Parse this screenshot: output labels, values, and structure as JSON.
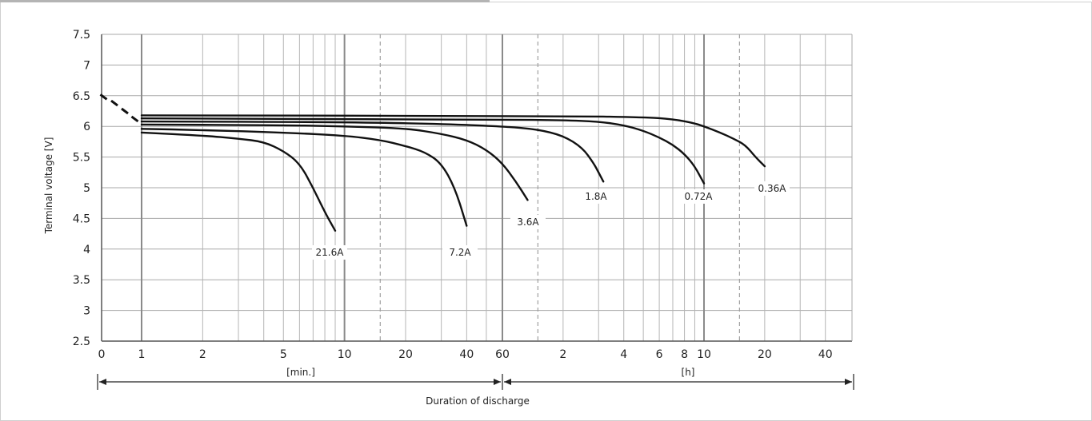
{
  "chart_data": {
    "type": "line",
    "ylabel": "Terminal voltage [V]",
    "xlabel": "Duration of discharge",
    "unit_labels": {
      "minutes": "[min.]",
      "hours": "[h]"
    },
    "ylim": [
      2.5,
      7.5
    ],
    "y_ticks": [
      "2.5",
      "3",
      "3.5",
      "4",
      "4.5",
      "5",
      "5.5",
      "6",
      "6.5",
      "7",
      "7.5"
    ],
    "x_tick_labels": [
      {
        "label": "0",
        "minutes": 0
      },
      {
        "label": "1",
        "minutes": 1
      },
      {
        "label": "2",
        "minutes": 2
      },
      {
        "label": "5",
        "minutes": 5
      },
      {
        "label": "10",
        "minutes": 10
      },
      {
        "label": "20",
        "minutes": 20
      },
      {
        "label": "40",
        "minutes": 40
      },
      {
        "label": "60",
        "minutes": 60
      },
      {
        "label": "2",
        "minutes": 120
      },
      {
        "label": "4",
        "minutes": 240
      },
      {
        "label": "6",
        "minutes": 360
      },
      {
        "label": "8",
        "minutes": 480
      },
      {
        "label": "10",
        "minutes": 600
      },
      {
        "label": "20",
        "minutes": 1200
      },
      {
        "label": "40",
        "minutes": 2400
      }
    ],
    "grid": true,
    "series": [
      {
        "name": "21.6A",
        "points": [
          [
            1,
            5.9
          ],
          [
            2,
            5.85
          ],
          [
            3,
            5.8
          ],
          [
            4,
            5.75
          ],
          [
            5,
            5.6
          ],
          [
            6,
            5.4
          ],
          [
            7,
            5.0
          ],
          [
            8,
            4.6
          ],
          [
            9,
            4.3
          ]
        ]
      },
      {
        "name": "7.2A",
        "points": [
          [
            1,
            5.96
          ],
          [
            2,
            5.94
          ],
          [
            5,
            5.9
          ],
          [
            10,
            5.85
          ],
          [
            15,
            5.78
          ],
          [
            20,
            5.68
          ],
          [
            25,
            5.58
          ],
          [
            30,
            5.4
          ],
          [
            35,
            5.0
          ],
          [
            40,
            4.38
          ]
        ]
      },
      {
        "name": "3.6A",
        "points": [
          [
            1,
            6.03
          ],
          [
            5,
            6.02
          ],
          [
            10,
            6.0
          ],
          [
            20,
            5.97
          ],
          [
            30,
            5.88
          ],
          [
            40,
            5.78
          ],
          [
            50,
            5.62
          ],
          [
            60,
            5.4
          ],
          [
            70,
            5.1
          ],
          [
            80,
            4.8
          ]
        ]
      },
      {
        "name": "1.8A",
        "points": [
          [
            1,
            6.08
          ],
          [
            10,
            6.07
          ],
          [
            30,
            6.04
          ],
          [
            60,
            6.0
          ],
          [
            90,
            5.95
          ],
          [
            120,
            5.85
          ],
          [
            150,
            5.65
          ],
          [
            170,
            5.4
          ],
          [
            180,
            5.25
          ],
          [
            190,
            5.1
          ]
        ]
      },
      {
        "name": "0.72A",
        "points": [
          [
            1,
            6.13
          ],
          [
            60,
            6.11
          ],
          [
            120,
            6.1
          ],
          [
            180,
            6.08
          ],
          [
            240,
            6.02
          ],
          [
            300,
            5.93
          ],
          [
            360,
            5.82
          ],
          [
            420,
            5.7
          ],
          [
            480,
            5.55
          ],
          [
            540,
            5.35
          ],
          [
            600,
            5.07
          ]
        ]
      },
      {
        "name": "0.36A",
        "points": [
          [
            1,
            6.18
          ],
          [
            120,
            6.17
          ],
          [
            300,
            6.15
          ],
          [
            420,
            6.12
          ],
          [
            540,
            6.05
          ],
          [
            600,
            6.0
          ],
          [
            720,
            5.9
          ],
          [
            840,
            5.8
          ],
          [
            960,
            5.7
          ],
          [
            1080,
            5.5
          ],
          [
            1200,
            5.35
          ]
        ]
      }
    ],
    "initial_markers": [
      [
        0.05,
        6.48
      ],
      [
        0.32,
        6.38
      ],
      [
        0.58,
        6.25
      ],
      [
        0.83,
        6.12
      ]
    ]
  }
}
